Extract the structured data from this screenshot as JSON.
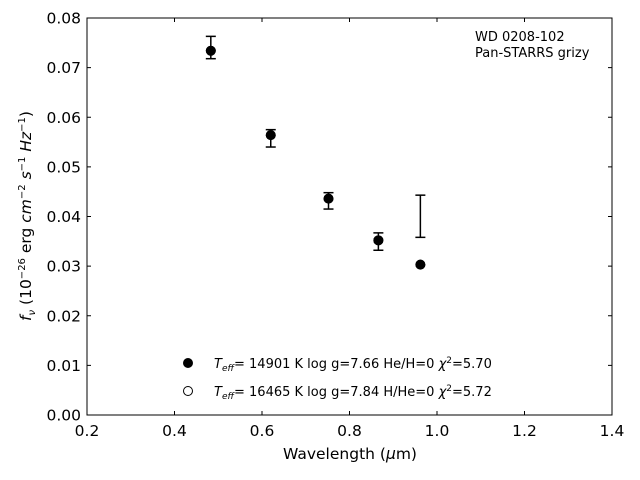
{
  "chart_data": {
    "type": "scatter",
    "xlim": [
      0.2,
      1.4
    ],
    "ylim": [
      0.0,
      0.08
    ],
    "x_ticks": [
      0.2,
      0.4,
      0.6,
      0.8,
      1.0,
      1.2,
      1.4
    ],
    "x_tick_labels": [
      "0.2",
      "0.4",
      "0.6",
      "0.8",
      "1.0",
      "1.2",
      "1.4"
    ],
    "y_ticks": [
      0.0,
      0.01,
      0.02,
      0.03,
      0.04,
      0.05,
      0.06,
      0.07,
      0.08
    ],
    "y_tick_labels": [
      "0.00",
      "0.01",
      "0.02",
      "0.03",
      "0.04",
      "0.05",
      "0.06",
      "0.07",
      "0.08"
    ],
    "xlabel": "Wavelength (μm)",
    "ylabel": "fν (10⁻²⁶ erg cm⁻² s⁻¹ Hz⁻¹)",
    "annotations": [
      "WD 0208-102",
      "Pan-STARRS grizy"
    ],
    "grid": false,
    "observed_errorbars": [
      {
        "x": 0.483,
        "low": 0.0718,
        "high": 0.0763
      },
      {
        "x": 0.62,
        "low": 0.054,
        "high": 0.0575
      },
      {
        "x": 0.752,
        "low": 0.0415,
        "high": 0.0448
      },
      {
        "x": 0.866,
        "low": 0.0332,
        "high": 0.0367
      },
      {
        "x": 0.962,
        "low": 0.0358,
        "high": 0.0443
      }
    ],
    "series": [
      {
        "marker": "filled-circle",
        "x": [
          0.483,
          0.62,
          0.752,
          0.866,
          0.962
        ],
        "y": [
          0.0734,
          0.0564,
          0.0436,
          0.0352,
          0.0303
        ]
      },
      {
        "marker": "open-circle",
        "x": [
          0.483,
          0.62,
          0.752,
          0.866,
          0.962
        ],
        "y": [
          0.0734,
          0.0564,
          0.0436,
          0.0352,
          0.0303
        ]
      }
    ],
    "legend": {
      "placement": "lower-center",
      "entries": [
        {
          "marker": "filled-circle",
          "parts": [
            "T",
            "eff",
            "= 14901 K  log g=7.66  He/H=0  ",
            "χ",
            "2",
            "=5.70"
          ]
        },
        {
          "marker": "open-circle",
          "parts": [
            "T",
            "eff",
            "= 16465 K  log g=7.84  H/He=0  ",
            "χ",
            "2",
            "=5.72"
          ]
        }
      ]
    }
  }
}
